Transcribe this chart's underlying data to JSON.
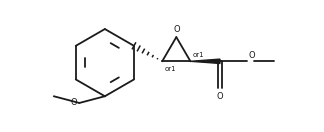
{
  "bg_color": "#ffffff",
  "line_color": "#1a1a1a",
  "line_width": 1.3,
  "font_size": 6.0,
  "or1_font_size": 5.0,
  "figsize": [
    3.24,
    1.32
  ],
  "dpi": 100,
  "xlim": [
    -3.2,
    1.6
  ],
  "ylim": [
    -0.85,
    0.75
  ]
}
